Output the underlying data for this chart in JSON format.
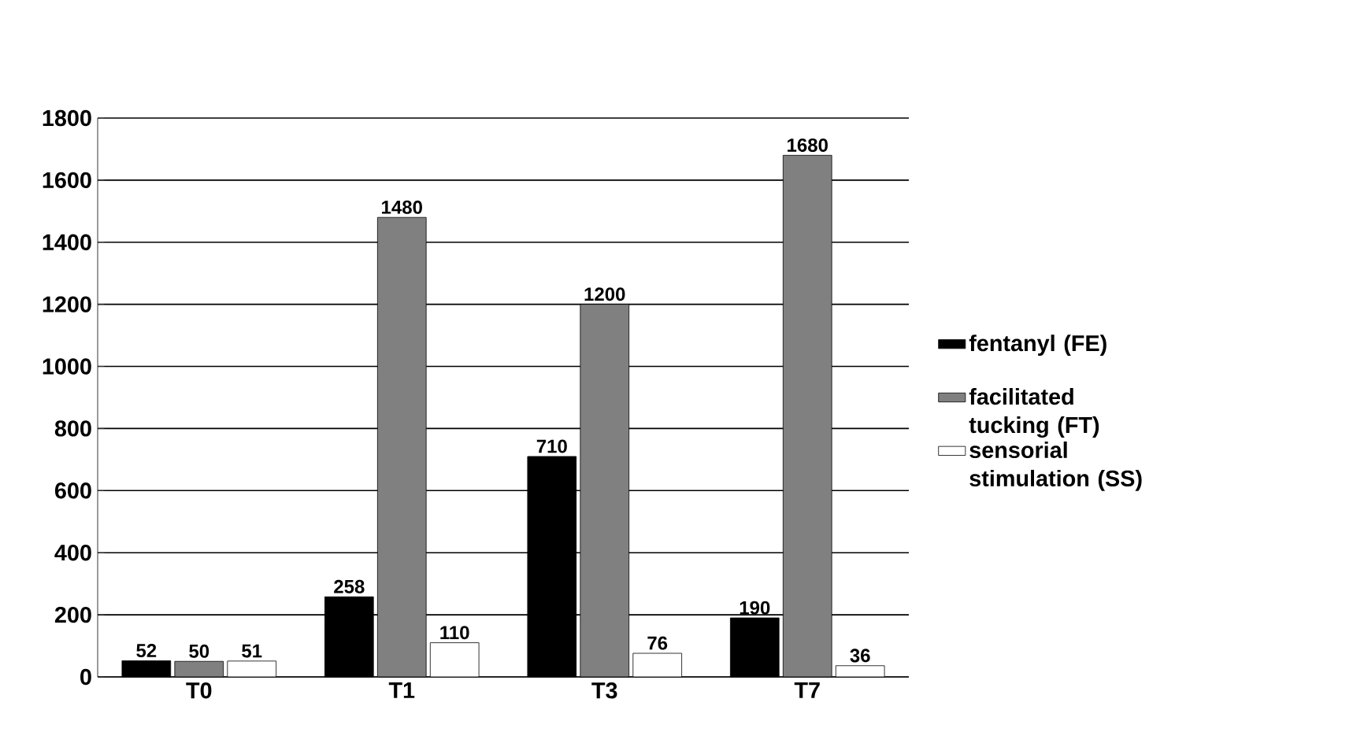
{
  "chart_data": {
    "type": "bar",
    "categories": [
      "T0",
      "T1",
      "T3",
      "T7"
    ],
    "series": [
      {
        "name": "fentanyl (FE)",
        "color": "#000000",
        "values": [
          52,
          258,
          710,
          190
        ]
      },
      {
        "name": "facilitated tucking (FT)",
        "color": "#808080",
        "values": [
          50,
          1480,
          1200,
          1680
        ]
      },
      {
        "name": "sensorial stimulation (SS)",
        "color": "#ffffff",
        "values": [
          51,
          110,
          76,
          36
        ]
      }
    ],
    "ylim": [
      0,
      1800
    ],
    "yticks": [
      0,
      200,
      400,
      600,
      800,
      1000,
      1200,
      1400,
      1600,
      1800
    ],
    "grid": "y",
    "legend": "right",
    "data_labels": true
  }
}
